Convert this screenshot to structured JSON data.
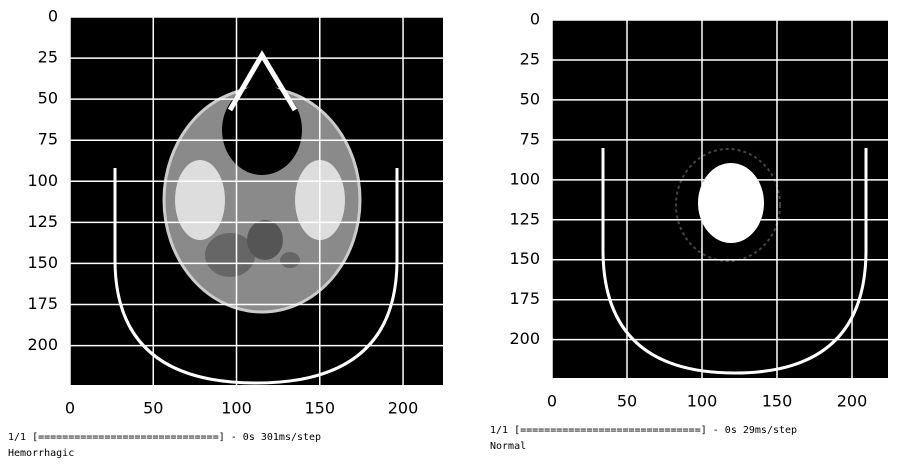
{
  "chart_data": [
    {
      "type": "image",
      "xlim": [
        0,
        224
      ],
      "ylim": [
        224,
        0
      ],
      "xticks": [
        0,
        50,
        100,
        150,
        200
      ],
      "yticks": [
        0,
        25,
        50,
        75,
        100,
        125,
        150,
        175,
        200
      ],
      "grid": true
    },
    {
      "type": "image",
      "xlim": [
        0,
        224
      ],
      "ylim": [
        224,
        0
      ],
      "xticks": [
        0,
        50,
        100,
        150,
        200
      ],
      "yticks": [
        0,
        25,
        50,
        75,
        100,
        125,
        150,
        175,
        200
      ],
      "grid": true
    }
  ],
  "outputs": [
    {
      "progress": "1/1 [==============================] - 0s 301ms/step",
      "label": "Hemorrhagic"
    },
    {
      "progress": "1/1 [==============================] - 0s 29ms/step",
      "label": "Normal"
    }
  ]
}
